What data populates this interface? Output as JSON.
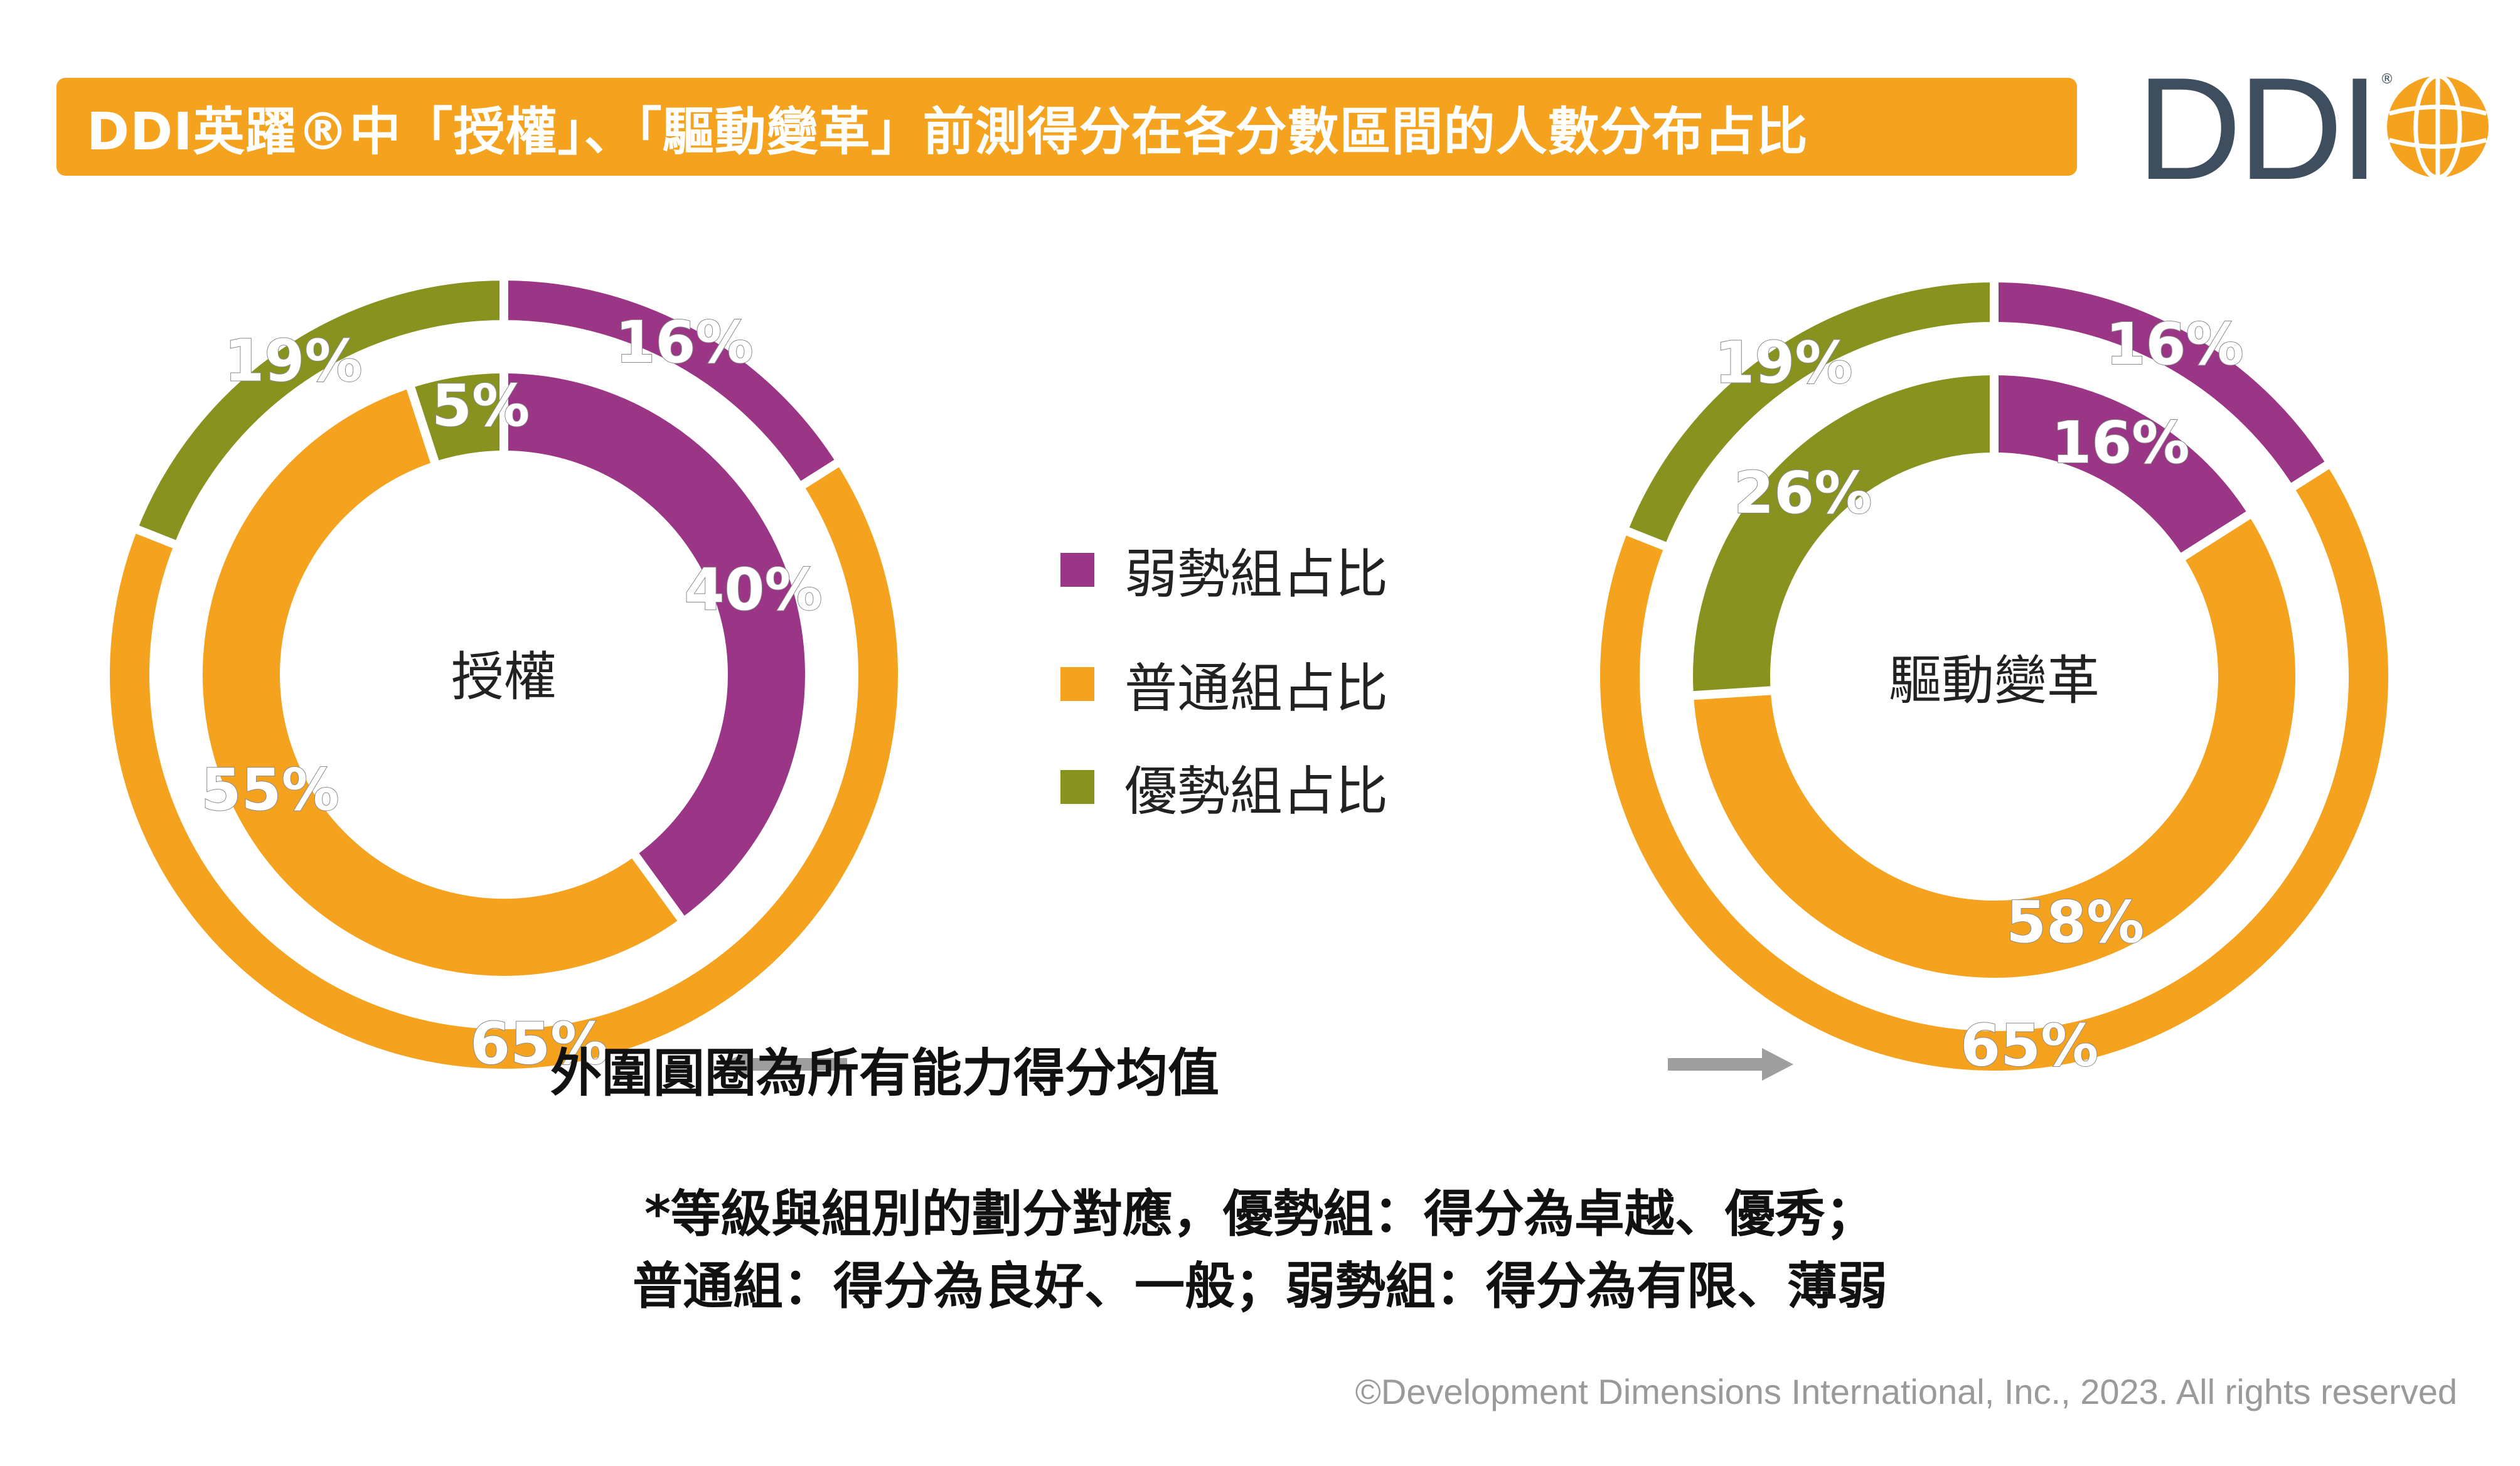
{
  "title": "DDI英躍®中「授權」、「驅動變革」前測得分在各分數區間的人數分布占比",
  "logo": {
    "text": "DDI",
    "registered": "®"
  },
  "colors": {
    "weak": "#9b3586",
    "average": "#f5a31f",
    "strong": "#87921f",
    "title_bg": "#f5a31f"
  },
  "legend": [
    {
      "label": "弱勢組占比",
      "color": "#9b3586"
    },
    {
      "label": "普通組占比",
      "color": "#f5a31f"
    },
    {
      "label": "優勢組占比",
      "color": "#87921f"
    }
  ],
  "chart_data": [
    {
      "type": "pie",
      "center_label": "授權",
      "rings": [
        {
          "ring": "outer",
          "values": [
            16,
            65,
            19
          ],
          "labels": [
            "16%",
            "65%",
            "19%"
          ]
        },
        {
          "ring": "inner",
          "values": [
            40,
            55,
            5
          ],
          "labels": [
            "40%",
            "55%",
            "5%"
          ]
        }
      ],
      "categories": [
        "弱勢組占比",
        "普通組占比",
        "優勢組占比"
      ]
    },
    {
      "type": "pie",
      "center_label": "驅動變革",
      "rings": [
        {
          "ring": "outer",
          "values": [
            16,
            65,
            19
          ],
          "labels": [
            "16%",
            "65%",
            "19%"
          ]
        },
        {
          "ring": "inner",
          "values": [
            16,
            58,
            26
          ],
          "labels": [
            "16%",
            "58%",
            "26%"
          ]
        }
      ],
      "categories": [
        "弱勢組占比",
        "普通組占比",
        "優勢組占比"
      ]
    }
  ],
  "outer_ring_note": "外圍圓圈為所有能力得分均值",
  "footnote": {
    "line1": "*等級與組別的劃分對應，優勢組：得分為卓越、優秀；",
    "line2": "普通組：得分為良好、一般；弱勢組：得分為有限、薄弱"
  },
  "copyright": "©Development Dimensions International, Inc., 2023. All rights reserved"
}
